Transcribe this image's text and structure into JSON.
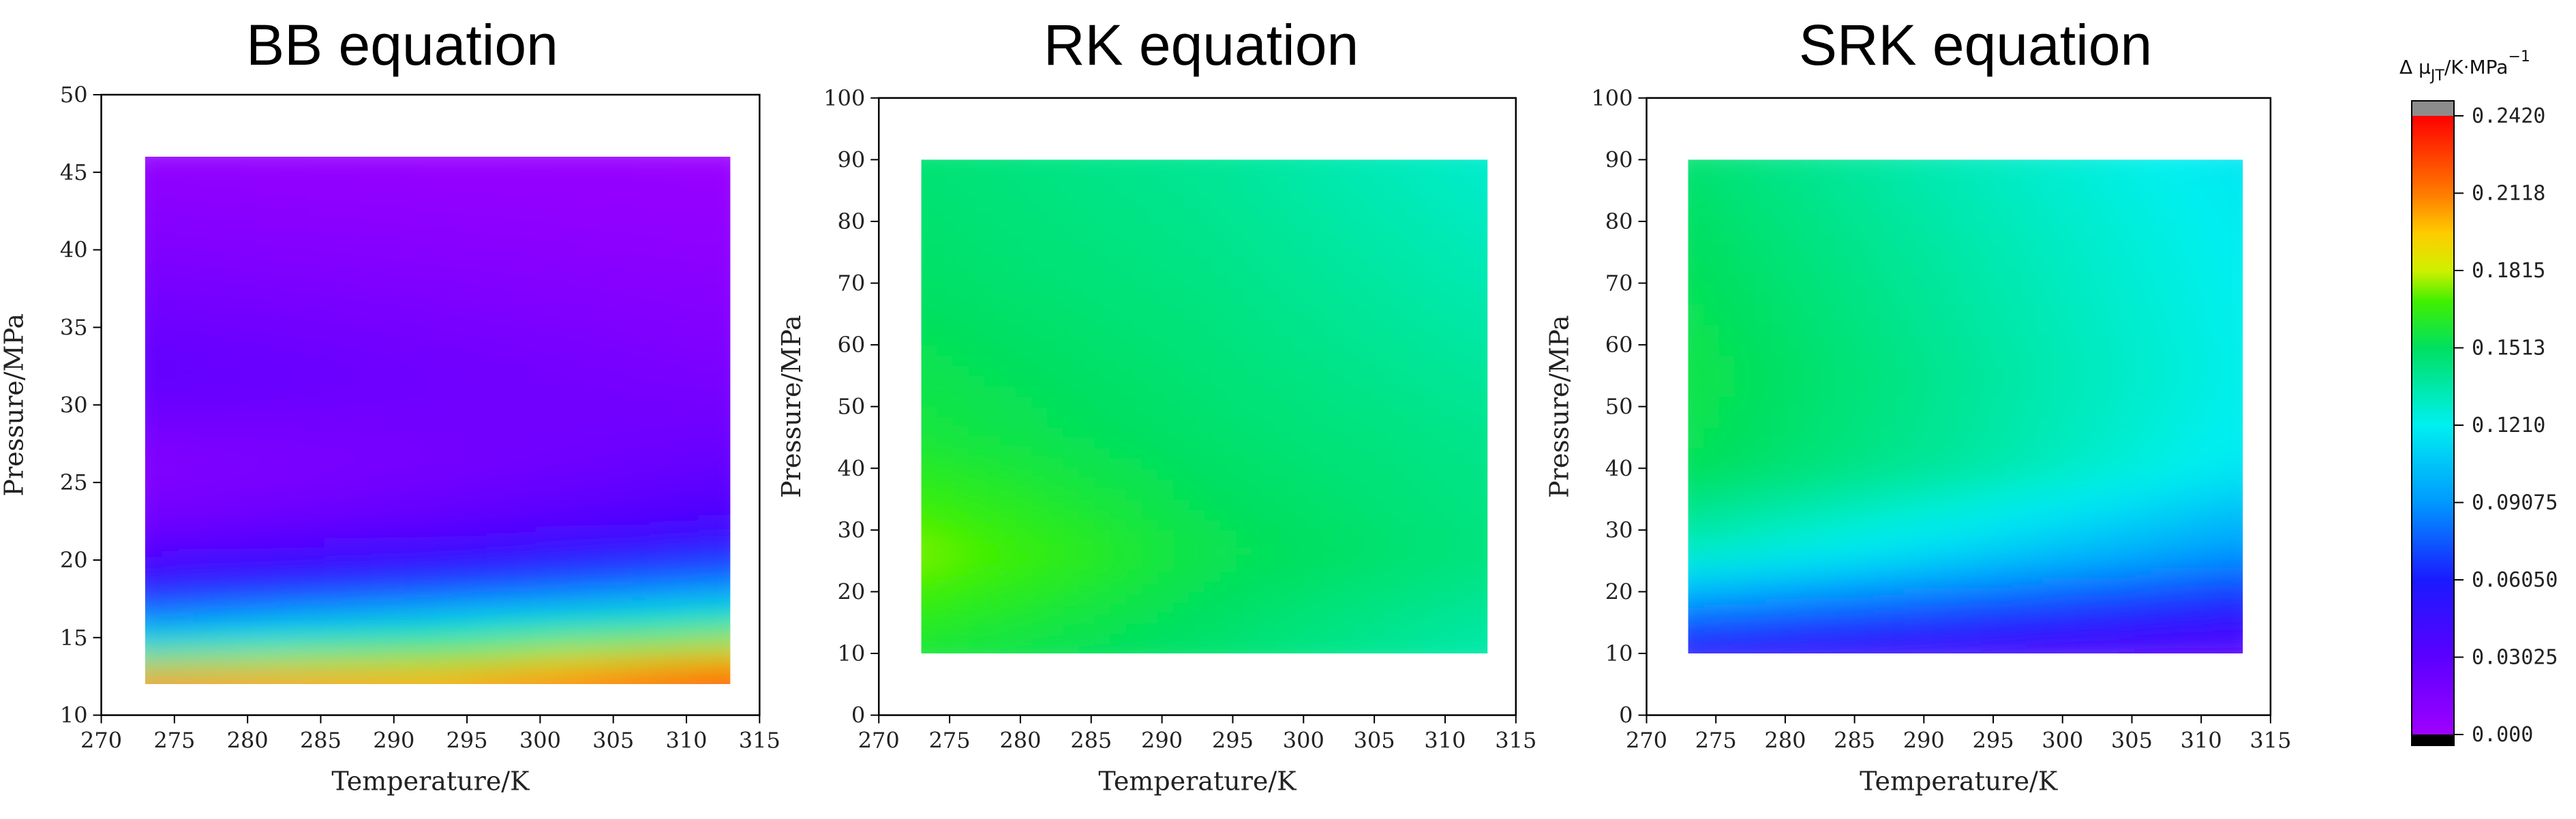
{
  "chart_data": [
    {
      "type": "heatmap",
      "title": "BB equation",
      "xlabel": "Temperature/K",
      "ylabel": "Pressure/MPa",
      "xlim": [
        270,
        315
      ],
      "ylim": [
        10,
        50
      ],
      "xticks": [
        "270",
        "275",
        "280",
        "285",
        "290",
        "295",
        "300",
        "305",
        "310",
        "315"
      ],
      "yticks": [
        "10",
        "15",
        "20",
        "25",
        "30",
        "35",
        "40",
        "45",
        "50"
      ],
      "data_extent": {
        "x": [
          273,
          313
        ],
        "y": [
          12,
          46
        ]
      },
      "levels": [
        {
          "t": 273,
          "p": 12,
          "value": 0.22
        },
        {
          "t": 293,
          "p": 12,
          "value": 0.21
        },
        {
          "t": 313,
          "p": 12,
          "value": 0.235
        },
        {
          "t": 273,
          "p": 14,
          "value": 0.14
        },
        {
          "t": 293,
          "p": 14,
          "value": 0.165
        },
        {
          "t": 313,
          "p": 14,
          "value": 0.19
        },
        {
          "t": 273,
          "p": 16,
          "value": 0.09
        },
        {
          "t": 293,
          "p": 16,
          "value": 0.115
        },
        {
          "t": 313,
          "p": 16,
          "value": 0.14
        },
        {
          "t": 273,
          "p": 18,
          "value": 0.055
        },
        {
          "t": 293,
          "p": 18,
          "value": 0.07
        },
        {
          "t": 313,
          "p": 18,
          "value": 0.09
        },
        {
          "t": 273,
          "p": 22,
          "value": 0.022
        },
        {
          "t": 293,
          "p": 22,
          "value": 0.03
        },
        {
          "t": 313,
          "p": 22,
          "value": 0.04
        },
        {
          "t": 273,
          "p": 26,
          "value": 0.012
        },
        {
          "t": 293,
          "p": 26,
          "value": 0.018
        },
        {
          "t": 313,
          "p": 26,
          "value": 0.026
        },
        {
          "t": 273,
          "p": 32,
          "value": 0.028
        },
        {
          "t": 293,
          "p": 32,
          "value": 0.022
        },
        {
          "t": 313,
          "p": 32,
          "value": 0.016
        },
        {
          "t": 273,
          "p": 40,
          "value": 0.014
        },
        {
          "t": 293,
          "p": 40,
          "value": 0.011
        },
        {
          "t": 313,
          "p": 40,
          "value": 0.008
        },
        {
          "t": 273,
          "p": 46,
          "value": 0.006
        },
        {
          "t": 293,
          "p": 46,
          "value": 0.004
        },
        {
          "t": 313,
          "p": 46,
          "value": 0.003
        }
      ]
    },
    {
      "type": "heatmap",
      "title": "RK equation",
      "xlabel": "Temperature/K",
      "ylabel": "Pressure/MPa",
      "xlim": [
        270,
        315
      ],
      "ylim": [
        0,
        100
      ],
      "xticks": [
        "270",
        "275",
        "280",
        "285",
        "290",
        "295",
        "300",
        "305",
        "310",
        "315"
      ],
      "yticks": [
        "0",
        "10",
        "20",
        "30",
        "40",
        "50",
        "60",
        "70",
        "80",
        "90",
        "100"
      ],
      "data_extent": {
        "x": [
          273,
          313
        ],
        "y": [
          10,
          90
        ]
      },
      "levels": [
        {
          "t": 273,
          "p": 10,
          "value": 0.158
        },
        {
          "t": 293,
          "p": 10,
          "value": 0.148
        },
        {
          "t": 313,
          "p": 10,
          "value": 0.135
        },
        {
          "t": 273,
          "p": 26,
          "value": 0.175
        },
        {
          "t": 293,
          "p": 26,
          "value": 0.155
        },
        {
          "t": 313,
          "p": 26,
          "value": 0.145
        },
        {
          "t": 273,
          "p": 45,
          "value": 0.158
        },
        {
          "t": 293,
          "p": 45,
          "value": 0.149
        },
        {
          "t": 313,
          "p": 45,
          "value": 0.142
        },
        {
          "t": 273,
          "p": 70,
          "value": 0.15
        },
        {
          "t": 293,
          "p": 70,
          "value": 0.144
        },
        {
          "t": 313,
          "p": 70,
          "value": 0.134
        },
        {
          "t": 273,
          "p": 90,
          "value": 0.147
        },
        {
          "t": 293,
          "p": 90,
          "value": 0.14
        },
        {
          "t": 313,
          "p": 90,
          "value": 0.128
        }
      ]
    },
    {
      "type": "heatmap",
      "title": "SRK equation",
      "xlabel": "Temperature/K",
      "ylabel": "Pressure/MPa",
      "xlim": [
        270,
        315
      ],
      "ylim": [
        0,
        100
      ],
      "xticks": [
        "270",
        "275",
        "280",
        "285",
        "290",
        "295",
        "300",
        "305",
        "310",
        "315"
      ],
      "yticks": [
        "0",
        "10",
        "20",
        "30",
        "40",
        "50",
        "60",
        "70",
        "80",
        "90",
        "100"
      ],
      "data_extent": {
        "x": [
          273,
          313
        ],
        "y": [
          10,
          90
        ]
      },
      "levels": [
        {
          "t": 273,
          "p": 10,
          "value": 0.05
        },
        {
          "t": 293,
          "p": 10,
          "value": 0.04
        },
        {
          "t": 313,
          "p": 10,
          "value": 0.03
        },
        {
          "t": 273,
          "p": 18,
          "value": 0.09
        },
        {
          "t": 293,
          "p": 18,
          "value": 0.075
        },
        {
          "t": 313,
          "p": 18,
          "value": 0.06
        },
        {
          "t": 273,
          "p": 26,
          "value": 0.13
        },
        {
          "t": 293,
          "p": 26,
          "value": 0.11
        },
        {
          "t": 313,
          "p": 26,
          "value": 0.09
        },
        {
          "t": 273,
          "p": 40,
          "value": 0.153
        },
        {
          "t": 293,
          "p": 40,
          "value": 0.138
        },
        {
          "t": 313,
          "p": 40,
          "value": 0.118
        },
        {
          "t": 273,
          "p": 55,
          "value": 0.156
        },
        {
          "t": 293,
          "p": 55,
          "value": 0.14
        },
        {
          "t": 313,
          "p": 55,
          "value": 0.122
        },
        {
          "t": 273,
          "p": 75,
          "value": 0.152
        },
        {
          "t": 293,
          "p": 75,
          "value": 0.136
        },
        {
          "t": 313,
          "p": 75,
          "value": 0.12
        },
        {
          "t": 273,
          "p": 90,
          "value": 0.148
        },
        {
          "t": 293,
          "p": 90,
          "value": 0.132
        },
        {
          "t": 313,
          "p": 90,
          "value": 0.117
        }
      ]
    }
  ],
  "colorbar": {
    "title_prefix": "Δ μ",
    "title_sub": "JT",
    "title_suffix": "/K·MPa",
    "title_sup": "−1",
    "range": [
      0.0,
      0.242
    ],
    "ticks": [
      "0.2420",
      "0.2118",
      "0.1815",
      "0.1513",
      "0.1210",
      "0.09075",
      "0.06050",
      "0.03025",
      "0.000"
    ],
    "over_color": "#8c8c8c",
    "under_color": "#000000"
  }
}
